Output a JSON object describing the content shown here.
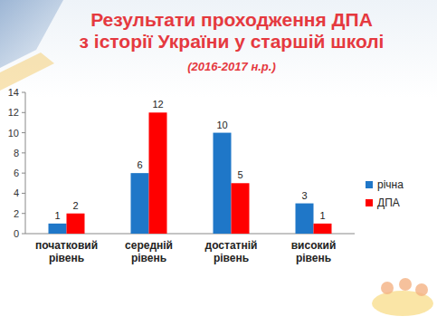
{
  "chart_data": {
    "type": "bar",
    "title": "Результати проходження ДПА\nз історії України у старшій школі",
    "subtitle": "(2016-2017 н.р.)",
    "categories": [
      "початковий\nрівень",
      "середній\nрівень",
      "достатній\nрівень",
      "високий\nрівень"
    ],
    "series": [
      {
        "name": "річна",
        "color": "#1f77c8",
        "values": [
          1,
          6,
          10,
          3
        ]
      },
      {
        "name": "ДПА",
        "color": "#ff0000",
        "values": [
          2,
          12,
          5,
          1
        ]
      }
    ],
    "ylim": [
      0,
      14
    ],
    "yticks": [
      0,
      2,
      4,
      6,
      8,
      10,
      12,
      14
    ],
    "grid": false,
    "legend": "right",
    "data_labels": true
  }
}
